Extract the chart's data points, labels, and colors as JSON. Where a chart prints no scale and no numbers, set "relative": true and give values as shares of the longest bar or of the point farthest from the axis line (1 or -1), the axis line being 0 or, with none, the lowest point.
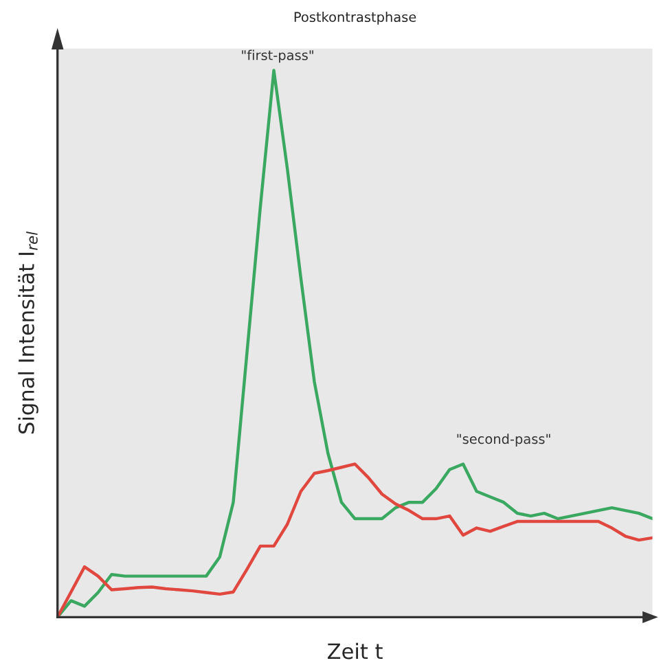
{
  "chart_data": {
    "type": "line",
    "title": "Postkontrastphase",
    "xlabel": "Zeit t",
    "ylabel": "Signal Intensität I$_{rel}$",
    "relative": true,
    "legend": false,
    "marker": "none",
    "line_style": "solid",
    "categories": [
      null,
      null,
      null,
      null,
      null,
      null,
      null,
      null,
      null,
      null,
      null,
      null,
      null,
      null,
      null,
      null,
      null,
      null,
      null,
      null,
      null,
      null,
      null,
      null,
      null,
      null,
      null,
      null,
      null,
      null,
      null,
      null,
      null,
      null,
      null,
      null,
      null,
      null,
      null,
      null,
      null,
      null,
      null,
      null,
      null
    ],
    "series": [
      {
        "color": "#3aa860",
        "values": [
          0,
          0.03,
          0.02,
          0.045,
          0.078,
          0.075,
          0.075,
          0.075,
          0.075,
          0.075,
          0.075,
          0.075,
          0.11,
          0.21,
          0.48,
          0.75,
          1.0,
          0.82,
          0.62,
          0.43,
          0.3,
          0.21,
          0.18,
          0.18,
          0.18,
          0.2,
          0.21,
          0.21,
          0.235,
          0.27,
          0.28,
          0.23,
          0.22,
          0.21,
          0.19,
          0.185,
          0.19,
          0.18,
          0.185,
          0.19,
          0.195,
          0.2,
          0.195,
          0.19,
          0.18
        ]
      },
      {
        "color": "#e0483f",
        "values": [
          0,
          0.046,
          0.092,
          0.075,
          0.05,
          0.052,
          0.054,
          0.055,
          0.052,
          0.05,
          0.048,
          0.045,
          0.042,
          0.046,
          0.087,
          0.13,
          0.13,
          0.17,
          0.23,
          0.263,
          0.268,
          0.274,
          0.28,
          0.255,
          0.225,
          0.207,
          0.195,
          0.18,
          0.18,
          0.185,
          0.15,
          0.163,
          0.157,
          0.166,
          0.175,
          0.175,
          0.175,
          0.175,
          0.175,
          0.175,
          0.175,
          0.163,
          0.148,
          0.141,
          0.145
        ]
      }
    ],
    "annotations": [
      "\"first-pass\"",
      "\"second-pass\""
    ]
  }
}
